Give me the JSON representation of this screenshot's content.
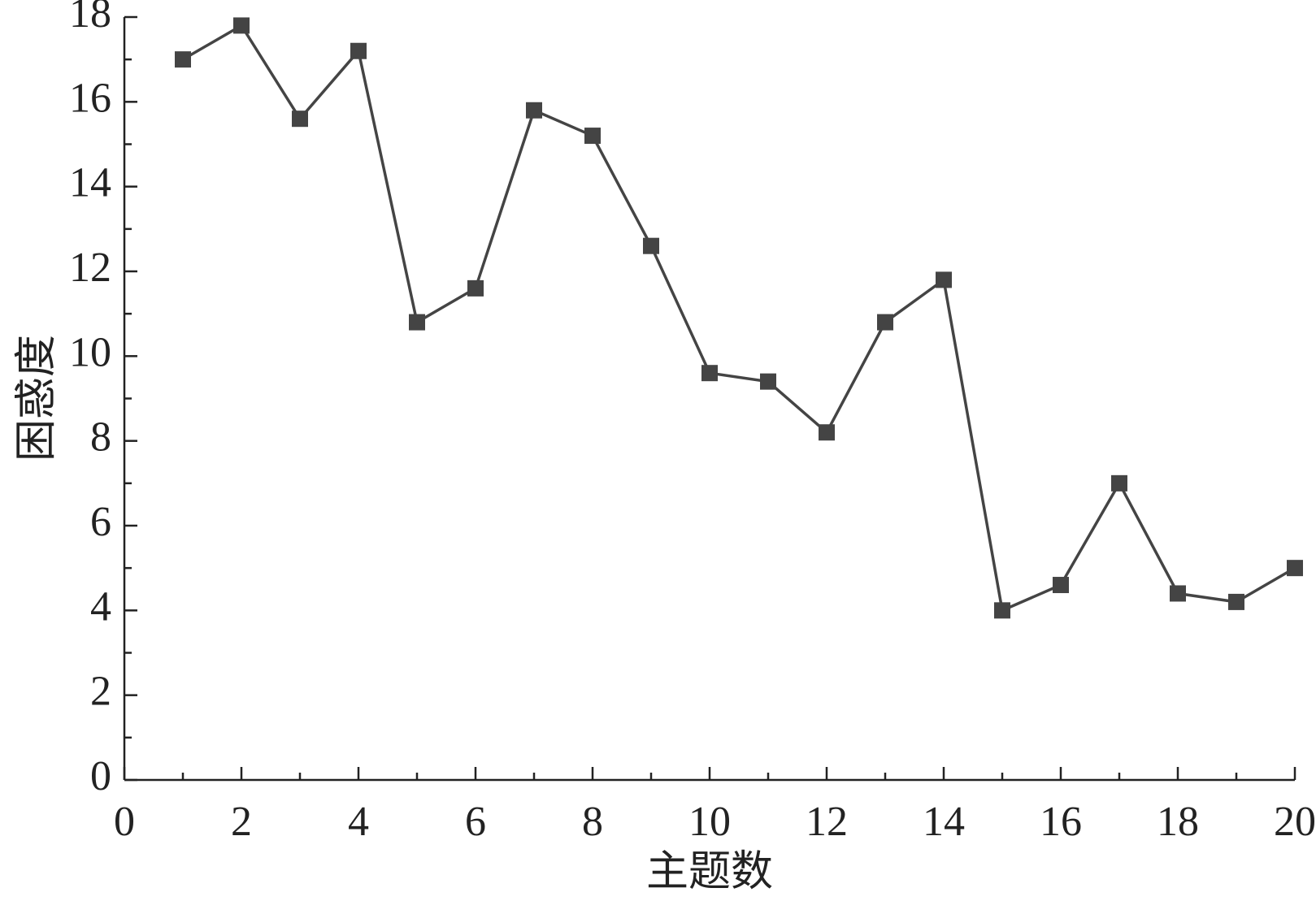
{
  "chart_data": {
    "type": "line",
    "x_label": "主题数",
    "y_label": "困惑度",
    "x": [
      1,
      2,
      3,
      4,
      5,
      6,
      7,
      8,
      9,
      10,
      11,
      12,
      13,
      14,
      15,
      16,
      17,
      18,
      19,
      20
    ],
    "series": [
      {
        "color": "#444444",
        "values": [
          17,
          17.8,
          15.6,
          17.2,
          10.8,
          11.6,
          15.8,
          15.2,
          12.6,
          9.6,
          9.4,
          8.2,
          10.8,
          11.8,
          4,
          4.6,
          7,
          4.4,
          4.2,
          5
        ]
      }
    ],
    "xlim": [
      0,
      20
    ],
    "xticks": [
      0,
      2,
      4,
      6,
      8,
      10,
      12,
      14,
      16,
      18,
      20
    ],
    "ylim": [
      0,
      18
    ],
    "yticks": [
      0,
      2,
      4,
      6,
      8,
      10,
      12,
      14,
      16,
      18
    ],
    "grid": false
  }
}
